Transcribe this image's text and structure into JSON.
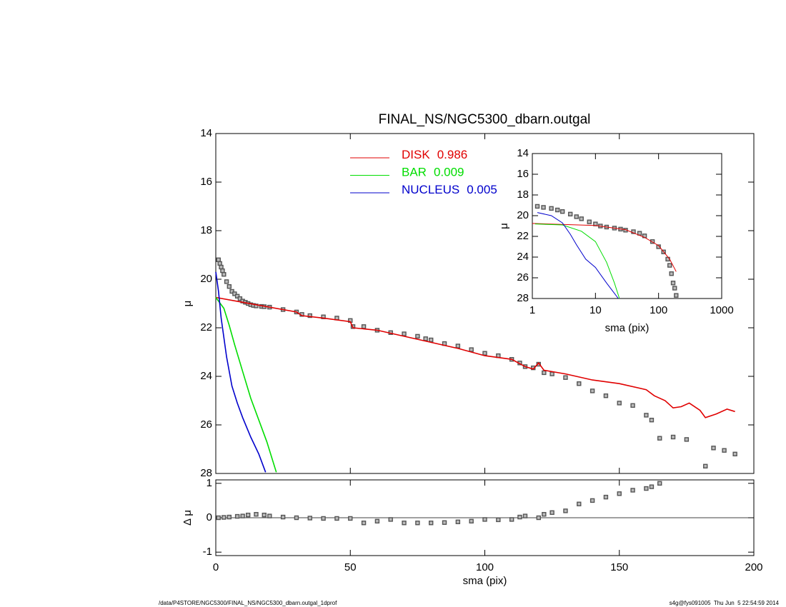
{
  "chart_data": [
    {
      "type": "line",
      "title": "FINAL_NS/NGC5300_dbarn.outgal",
      "ylabel": "μ",
      "xlim": [
        0,
        200
      ],
      "ylim": [
        14,
        28
      ],
      "y_reversed": true,
      "x_tick_labels": false,
      "xticks": [
        0,
        50,
        100,
        150,
        200
      ],
      "yticks": [
        14,
        16,
        18,
        20,
        22,
        24,
        26,
        28
      ],
      "series": [
        {
          "style": "markers",
          "color": "#555555",
          "x": [
            1,
            1.5,
            2,
            2.5,
            3,
            4,
            5,
            6,
            7,
            8,
            9,
            10,
            11,
            12,
            13,
            14,
            15,
            17,
            18,
            20,
            25,
            30,
            32,
            35,
            40,
            45,
            50,
            51,
            55,
            60,
            65,
            70,
            75,
            78,
            80,
            85,
            90,
            95,
            100,
            105,
            110,
            113,
            115,
            118,
            120,
            122,
            125,
            130,
            135,
            140,
            145,
            150,
            155,
            160,
            162,
            165,
            170,
            175,
            182,
            185,
            189,
            193
          ],
          "values": [
            19.2,
            19.35,
            19.5,
            19.65,
            19.8,
            20.1,
            20.3,
            20.5,
            20.6,
            20.7,
            20.8,
            20.9,
            20.95,
            21.0,
            21.05,
            21.08,
            21.1,
            21.12,
            21.13,
            21.15,
            21.25,
            21.35,
            21.45,
            21.5,
            21.55,
            21.6,
            21.7,
            21.95,
            21.95,
            22.1,
            22.2,
            22.25,
            22.35,
            22.45,
            22.5,
            22.65,
            22.75,
            22.9,
            23.05,
            23.15,
            23.3,
            23.45,
            23.6,
            23.65,
            23.5,
            23.85,
            23.9,
            24.05,
            24.3,
            24.6,
            24.8,
            25.1,
            25.2,
            25.6,
            25.8,
            26.55,
            26.5,
            26.6,
            27.7,
            26.95,
            27.05,
            27.2
          ]
        },
        {
          "style": "line",
          "name": "DISK",
          "fraction": 0.986,
          "color": "#e00000",
          "x": [
            0,
            10,
            20,
            30,
            32,
            40,
            50,
            51,
            60,
            70,
            80,
            90,
            100,
            110,
            115,
            118,
            120,
            122,
            130,
            140,
            150,
            160,
            163,
            167,
            170,
            173,
            176,
            180,
            182,
            186,
            190,
            193
          ],
          "values": [
            20.75,
            20.95,
            21.15,
            21.35,
            21.5,
            21.6,
            21.75,
            22.0,
            22.1,
            22.35,
            22.6,
            22.85,
            23.15,
            23.3,
            23.6,
            23.7,
            23.45,
            23.75,
            23.9,
            24.15,
            24.3,
            24.55,
            24.8,
            25.0,
            25.3,
            25.25,
            25.1,
            25.4,
            25.7,
            25.55,
            25.35,
            25.45
          ]
        },
        {
          "style": "line",
          "name": "BAR",
          "fraction": 0.009,
          "color": "#00dd00",
          "x": [
            0,
            3,
            5,
            7,
            10,
            13,
            16,
            19,
            22.5
          ],
          "values": [
            20.75,
            21.2,
            21.9,
            22.7,
            23.8,
            24.9,
            25.8,
            26.7,
            27.95
          ]
        },
        {
          "style": "line",
          "name": "NUCLEUS",
          "fraction": 0.005,
          "color": "#0000cc",
          "x": [
            0,
            1,
            2,
            4,
            6,
            8,
            10,
            13,
            16,
            18.5
          ],
          "values": [
            19.7,
            20.5,
            21.6,
            23.2,
            24.4,
            25.1,
            25.7,
            26.5,
            27.2,
            27.95
          ]
        }
      ]
    },
    {
      "type": "scatter",
      "ylabel": "Δ μ",
      "xlabel": "sma (pix)",
      "xlim": [
        0,
        200
      ],
      "ylim": [
        -1.1,
        1.1
      ],
      "zero_line": true,
      "xticks": [
        0,
        50,
        100,
        150,
        200
      ],
      "yticks": [
        -1,
        0,
        1
      ],
      "series": [
        {
          "style": "markers",
          "color": "#555555",
          "x": [
            1,
            3,
            5,
            8,
            10,
            12,
            15,
            18,
            20,
            25,
            30,
            35,
            40,
            45,
            50,
            55,
            60,
            65,
            70,
            75,
            80,
            85,
            90,
            95,
            100,
            105,
            110,
            113,
            115,
            120,
            122,
            125,
            130,
            135,
            140,
            145,
            150,
            155,
            160,
            162,
            165
          ],
          "values": [
            0,
            0.01,
            0.02,
            0.04,
            0.05,
            0.08,
            0.1,
            0.08,
            0.05,
            0.02,
            0,
            -0.01,
            -0.02,
            -0.02,
            -0.02,
            -0.15,
            -0.1,
            -0.05,
            -0.15,
            -0.15,
            -0.15,
            -0.14,
            -0.12,
            -0.1,
            -0.05,
            -0.06,
            -0.05,
            0.02,
            0.05,
            0.0,
            0.1,
            0.15,
            0.2,
            0.4,
            0.5,
            0.6,
            0.7,
            0.8,
            0.85,
            0.9,
            1.0
          ]
        }
      ]
    },
    {
      "type": "line",
      "ylabel": "μ",
      "xlabel": "sma (pix)",
      "xlog": true,
      "xlim": [
        1,
        1000
      ],
      "ylim": [
        14,
        28
      ],
      "y_reversed": true,
      "xticks": [
        1,
        10,
        100,
        1000
      ],
      "yticks": [
        14,
        16,
        18,
        20,
        22,
        24,
        26,
        28
      ],
      "series": [
        {
          "style": "markers",
          "color": "#555555",
          "x": [
            1.2,
            1.5,
            2,
            2.5,
            3,
            4,
            5,
            6,
            8,
            10,
            12,
            15,
            20,
            25,
            30,
            40,
            50,
            60,
            80,
            100,
            120,
            140,
            150,
            160,
            170,
            180,
            190
          ],
          "values": [
            19.1,
            19.2,
            19.3,
            19.45,
            19.6,
            19.85,
            20.1,
            20.3,
            20.6,
            20.8,
            21.0,
            21.1,
            21.2,
            21.3,
            21.4,
            21.55,
            21.7,
            21.95,
            22.5,
            23.0,
            23.5,
            24.2,
            24.8,
            25.6,
            26.5,
            27.0,
            27.7
          ]
        },
        {
          "style": "line",
          "color": "#e00000",
          "x": [
            1,
            10,
            30,
            60,
            100,
            150,
            190
          ],
          "values": [
            20.75,
            20.95,
            21.35,
            22.1,
            22.9,
            24.2,
            25.4
          ]
        },
        {
          "style": "line",
          "color": "#00dd00",
          "x": [
            1.1,
            3,
            6,
            10,
            15,
            20,
            24
          ],
          "values": [
            20.8,
            20.9,
            21.5,
            22.5,
            24.5,
            26.5,
            28
          ]
        },
        {
          "style": "line",
          "color": "#0000cc",
          "x": [
            1.2,
            2,
            3,
            4,
            5,
            7,
            10,
            15,
            20,
            23
          ],
          "values": [
            19.7,
            20.0,
            20.7,
            21.8,
            22.8,
            24.2,
            25.0,
            26.5,
            27.5,
            28
          ]
        }
      ]
    }
  ],
  "footer_left": "/data/P4STORE/NGC5300/FINAL_NS/NGC5300_dbarn.outgal_1dprof",
  "footer_right": "s4g@fys091005  Thu Jun  5 22:54:59 2014"
}
